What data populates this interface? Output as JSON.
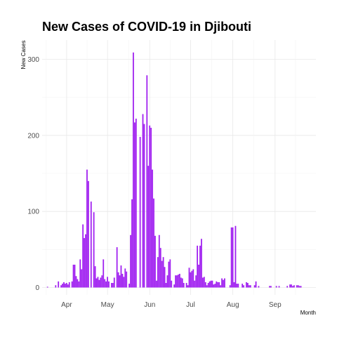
{
  "chart_data": {
    "type": "bar",
    "title": "New Cases of COVID-19 in Djibouti",
    "xlabel": "Month",
    "ylabel": "New Cases",
    "x_type": "date",
    "x_range": [
      "2020-03-14",
      "2020-10-01"
    ],
    "ylim": [
      0,
      330
    ],
    "y_ticks": [
      0,
      100,
      200,
      300
    ],
    "x_ticks": [
      {
        "date": "2020-04-01",
        "label": "Apr"
      },
      {
        "date": "2020-05-01",
        "label": "May"
      },
      {
        "date": "2020-06-01",
        "label": "Jun"
      },
      {
        "date": "2020-07-01",
        "label": "Jul"
      },
      {
        "date": "2020-08-01",
        "label": "Aug"
      },
      {
        "date": "2020-09-01",
        "label": "Sep"
      }
    ],
    "grid": true,
    "bar_color": "#a020f0",
    "series": [
      {
        "start_date": "2020-03-18",
        "values": [
          1,
          0,
          0,
          0,
          0,
          0,
          3,
          0,
          8,
          0,
          3,
          5,
          7,
          5,
          6,
          4,
          7,
          0,
          8,
          30,
          30,
          15,
          11,
          8,
          37,
          24,
          83,
          65,
          70,
          155,
          140,
          0,
          113,
          0,
          99,
          28,
          12,
          14,
          10,
          13,
          16,
          37,
          11,
          8,
          14,
          8,
          0,
          6,
          6,
          13,
          0,
          53,
          20,
          16,
          29,
          18,
          14,
          25,
          21,
          0,
          5,
          69,
          116,
          309,
          217,
          222,
          0,
          0,
          198,
          0,
          228,
          215,
          0,
          279,
          160,
          213,
          210,
          155,
          117,
          68,
          9,
          40,
          69,
          52,
          35,
          40,
          27,
          6,
          16,
          34,
          37,
          9,
          0,
          4,
          16,
          16,
          17,
          18,
          13,
          12,
          6,
          0,
          6,
          3,
          26,
          20,
          22,
          24,
          9,
          16,
          55,
          30,
          55,
          64,
          13,
          14,
          7,
          3,
          6,
          8,
          9,
          9,
          4,
          5,
          8,
          7,
          7,
          3,
          12,
          10,
          12,
          0,
          0,
          0,
          3,
          79,
          79,
          7,
          81,
          5,
          5,
          0,
          0,
          5,
          3,
          0,
          7,
          6,
          3,
          3,
          0,
          0,
          3,
          8,
          0,
          2,
          0,
          0,
          0,
          0,
          0,
          0,
          0,
          2,
          2,
          0,
          0,
          0,
          2,
          0,
          2,
          0,
          0,
          0,
          0,
          0,
          2,
          0,
          4,
          4,
          2,
          3,
          0,
          3,
          3,
          2,
          2,
          0
        ]
      }
    ]
  }
}
